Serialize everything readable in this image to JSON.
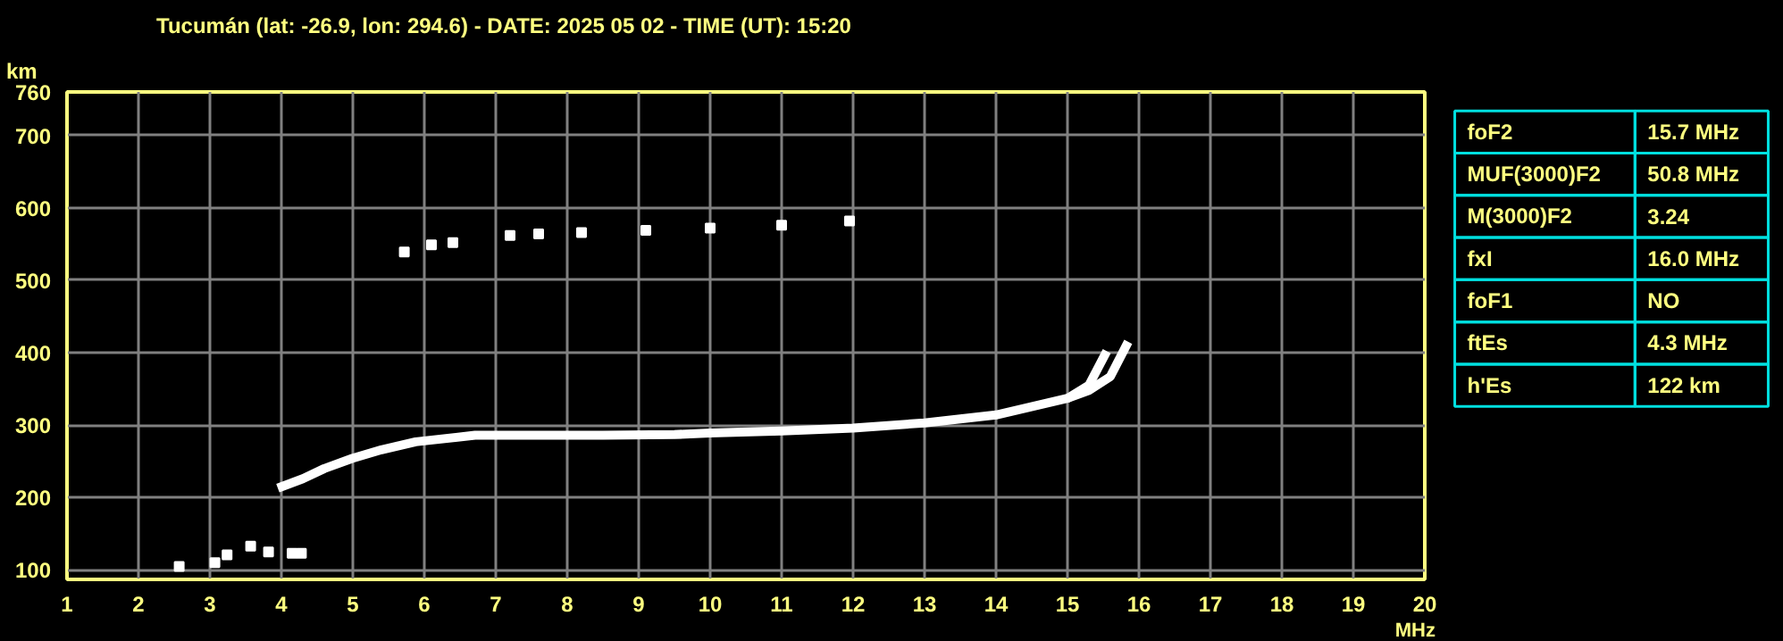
{
  "chart_data": [
    {
      "type": "line",
      "title": "Tucumán (lat: -26.9, lon: 294.6) - DATE: 2025 05 02 - TIME (UT): 15:20",
      "xlabel": "MHz",
      "ylabel": "km",
      "xlim": [
        1,
        20
      ],
      "ylim": [
        87,
        760
      ],
      "xticks": [
        1,
        2,
        3,
        4,
        5,
        6,
        7,
        8,
        9,
        10,
        11,
        12,
        13,
        14,
        15,
        16,
        17,
        18,
        19,
        20
      ],
      "yticks": [
        100,
        200,
        300,
        400,
        500,
        600,
        700,
        760
      ],
      "grid": true,
      "series": [
        {
          "type": "line",
          "color": "#ffffff",
          "x": [
            3.95,
            4.3,
            4.6,
            4.99,
            5.4,
            5.88,
            6.71,
            7.5,
            8.5,
            9.5,
            10.0,
            11.0,
            12.0,
            13.0,
            14.0,
            15.0,
            15.3,
            15.55
          ],
          "values": [
            213,
            226,
            240,
            254,
            266,
            277,
            286,
            286,
            286,
            287,
            289,
            292,
            296,
            303,
            314,
            337,
            355,
            402
          ]
        },
        {
          "type": "line",
          "color": "#ffffff",
          "x": [
            15.0,
            15.3,
            15.6,
            15.85
          ],
          "values": [
            337,
            348,
            367,
            415
          ]
        },
        {
          "type": "scatter",
          "marker": "square",
          "color": "#ffffff",
          "x": [
            5.72,
            6.1,
            6.4,
            7.2,
            7.6,
            8.2,
            9.1,
            10.0,
            11.0,
            11.95
          ],
          "values": [
            539,
            549,
            552,
            562,
            564,
            566,
            569,
            572,
            576,
            582
          ]
        },
        {
          "type": "scatter",
          "marker": "square",
          "color": "#ffffff",
          "x": [
            2.57,
            3.07,
            3.24,
            3.57,
            3.82,
            4.15,
            4.28
          ],
          "values": [
            105,
            110,
            121,
            133,
            125,
            123,
            123
          ]
        }
      ]
    },
    {
      "type": "other",
      "annotations": [
        "foF2",
        "15.7 MHz",
        "MUF(3000)F2",
        "50.8 MHz",
        "M(3000)F2",
        "3.24",
        "fxI",
        "16.0 MHz",
        "foF1",
        "NO",
        "ftEs",
        "4.3 MHz",
        "h'Es",
        "122 km"
      ]
    }
  ]
}
